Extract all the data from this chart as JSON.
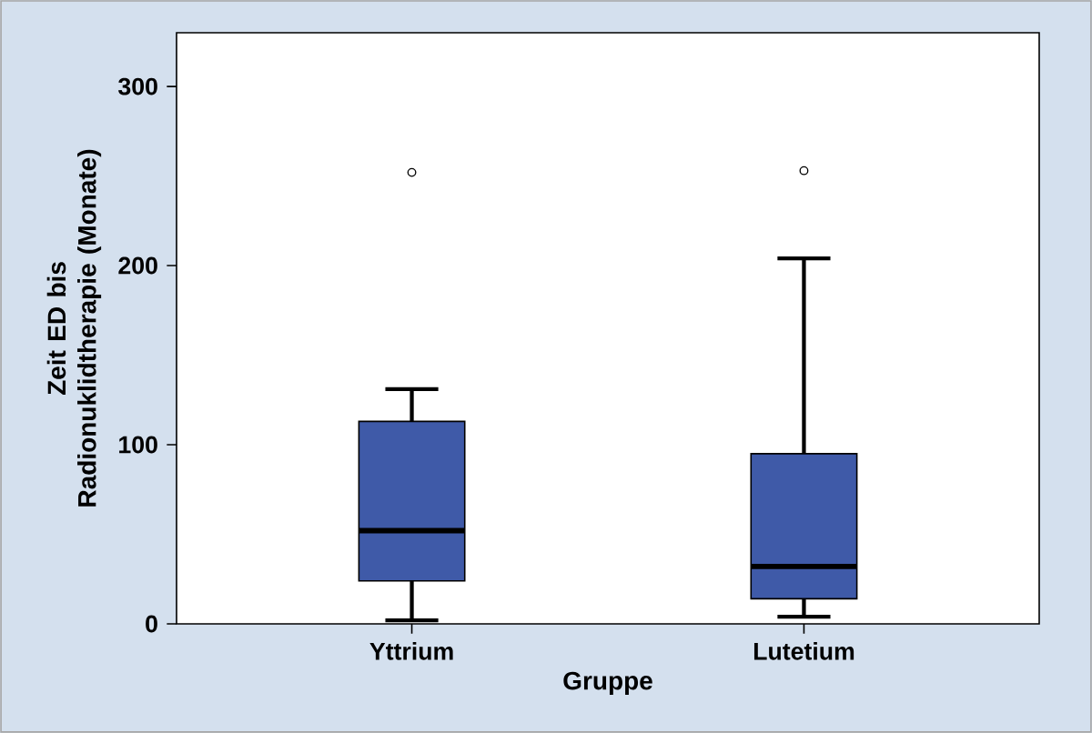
{
  "chart_data": {
    "type": "box",
    "xlabel": "Gruppe",
    "ylabel": "Zeit ED bis Radionuklidtherapie (Monate)",
    "categories": [
      "Yttrium",
      "Lutetium"
    ],
    "color": "#3f5aa8",
    "ylim": [
      0,
      330
    ],
    "yticks": [
      0,
      100,
      200,
      300
    ],
    "grid": false,
    "marker": "circle",
    "boxes": [
      {
        "low": 2,
        "q1": 24,
        "median": 52,
        "q3": 113,
        "high": 131,
        "outliers": [
          252
        ]
      },
      {
        "low": 4,
        "q1": 14,
        "median": 32,
        "q3": 95,
        "high": 204,
        "outliers": [
          253
        ]
      }
    ]
  }
}
